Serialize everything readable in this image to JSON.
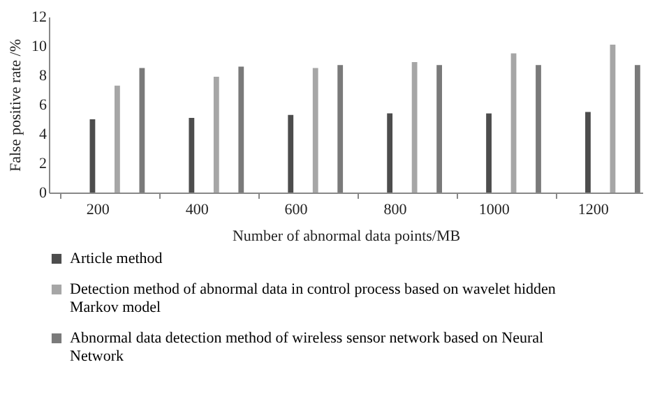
{
  "chart_data": {
    "type": "bar",
    "xlabel": "Number of abnormal data points/MB",
    "ylabel": "False positive rate /%",
    "categories": [
      "200",
      "400",
      "600",
      "800",
      "1000",
      "1200"
    ],
    "series": [
      {
        "name": "Article method",
        "color": "#4d4d4d",
        "values": [
          5.0,
          5.1,
          5.3,
          5.4,
          5.4,
          5.5
        ]
      },
      {
        "name": "Detection method of abnormal data in control process based on wavelet hidden Markov model",
        "color": "#a6a6a6",
        "values": [
          7.3,
          7.9,
          8.5,
          8.9,
          9.5,
          10.1
        ]
      },
      {
        "name": "Abnormal data detection method of wireless sensor network based on Neural Network",
        "color": "#7a7a7a",
        "values": [
          8.5,
          8.6,
          8.7,
          8.7,
          8.7,
          8.7
        ]
      }
    ],
    "ylim": [
      0,
      12
    ],
    "yticks": [
      0,
      2,
      4,
      6,
      8,
      10,
      12
    ],
    "grid": false,
    "legend": "bottom"
  }
}
